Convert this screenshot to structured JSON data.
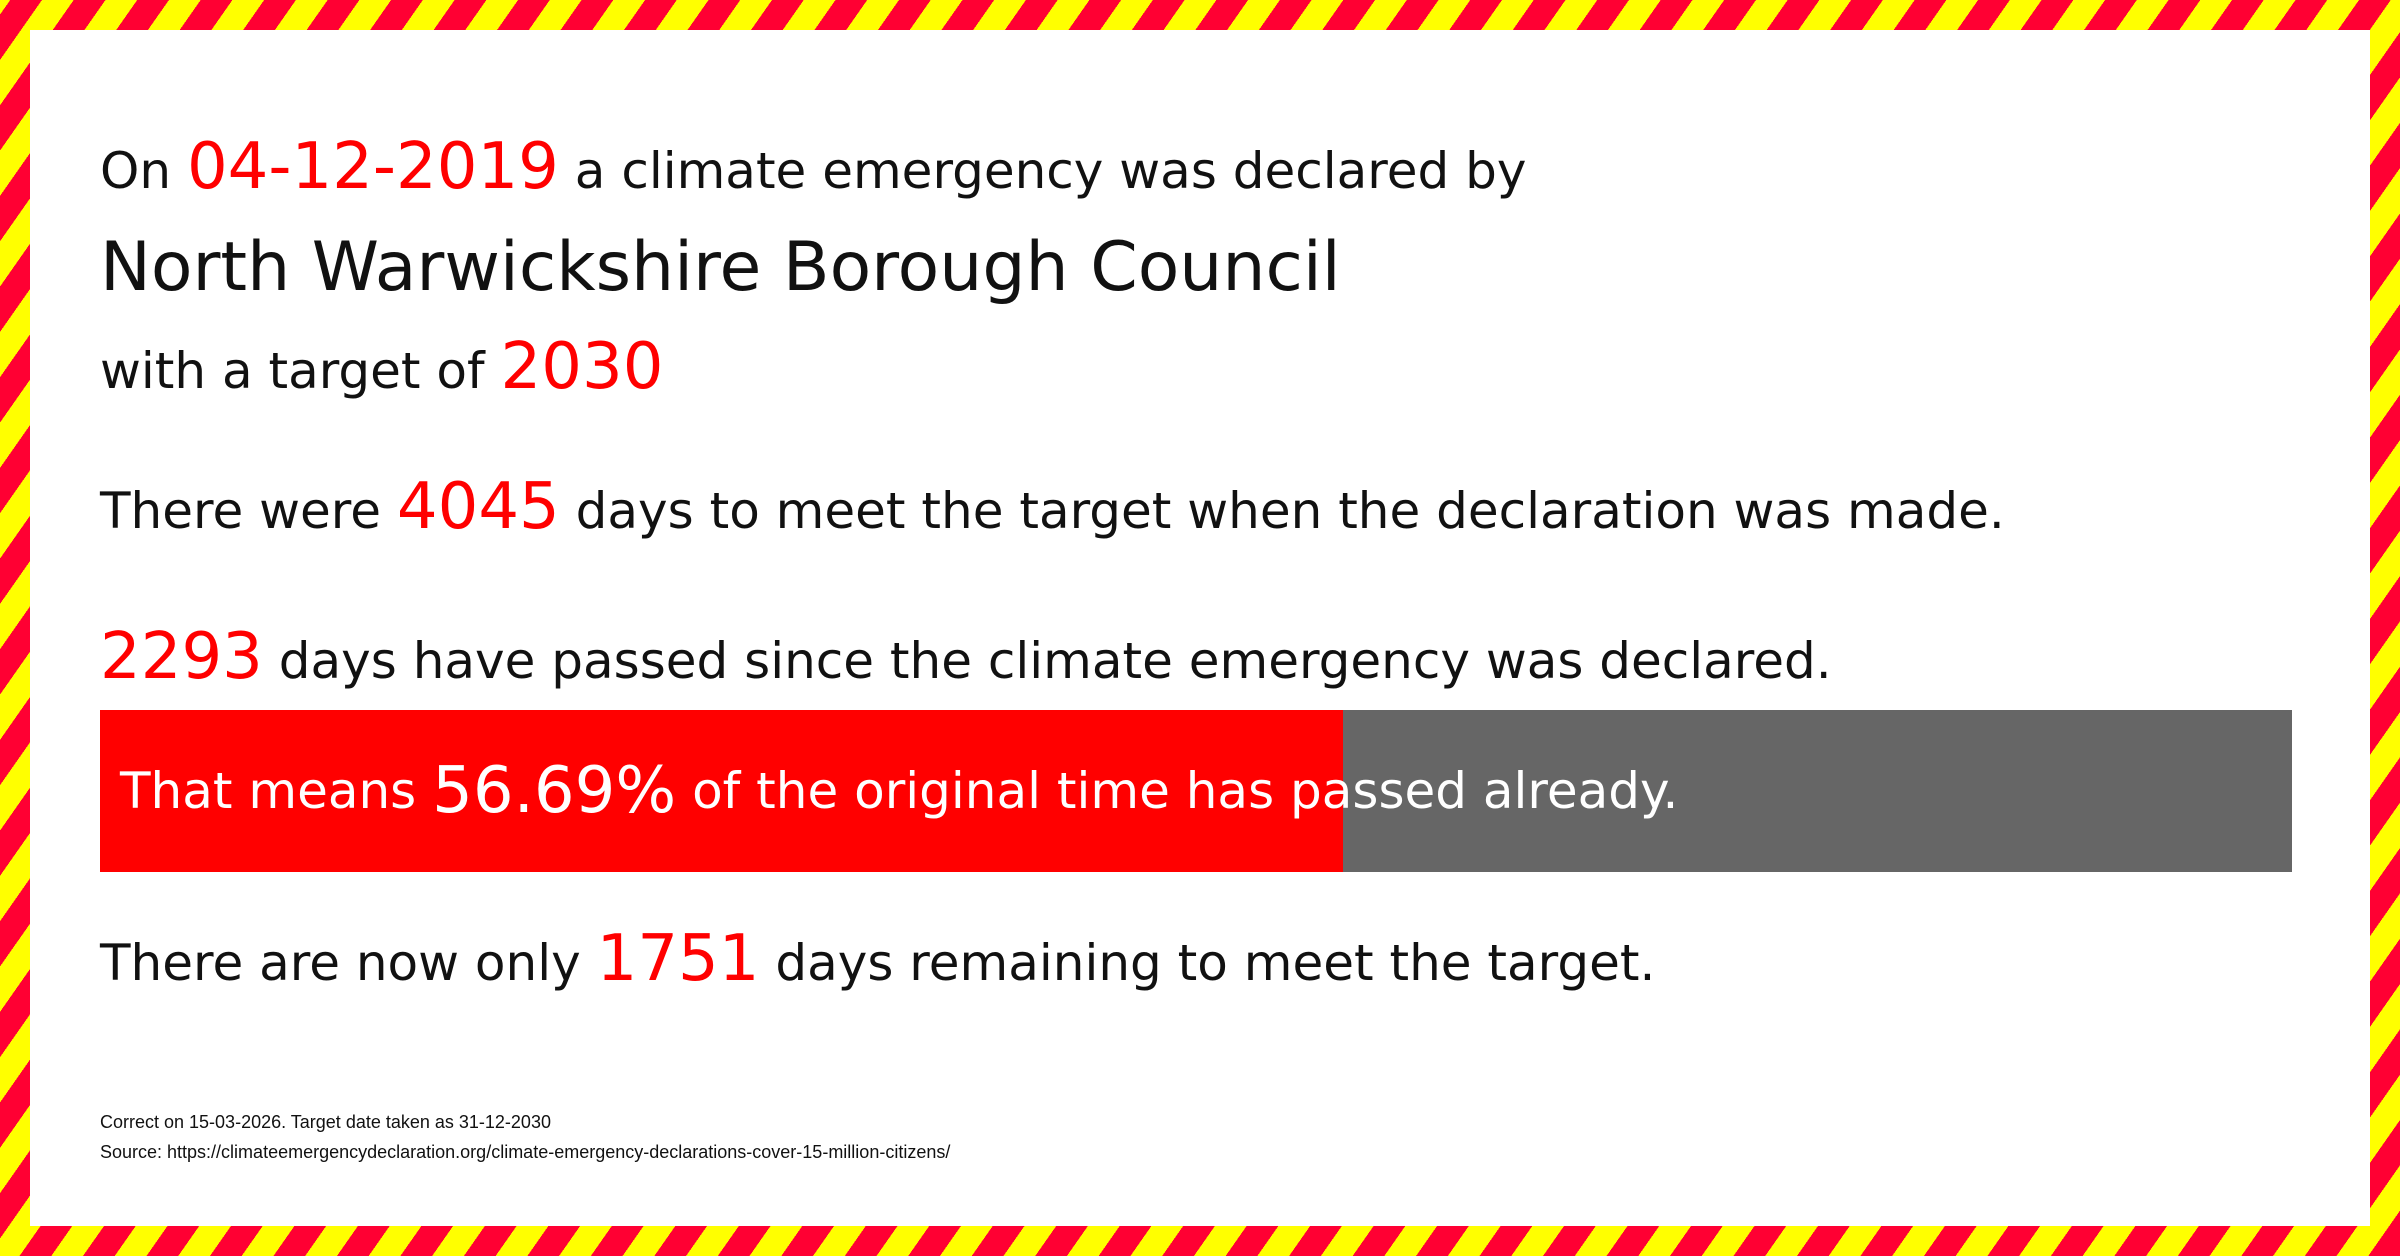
{
  "declaration": {
    "prefix": "On",
    "date": "04-12-2019",
    "suffix": "a climate emergency was declared by"
  },
  "council": "North Warwickshire Borough Council",
  "target": {
    "prefix": "with a target of",
    "year": "2030"
  },
  "days_total": {
    "prefix": "There were",
    "value": "4045",
    "suffix": "days to meet the target when the declaration was made."
  },
  "days_passed": {
    "value": "2293",
    "suffix": "days have passed since the climate emergency was declared."
  },
  "progress": {
    "prefix": "That means",
    "value": "56.69%",
    "suffix": "of the original time has passed already.",
    "percent": 56.69,
    "fill_color": "#ff0000",
    "track_color": "#666666"
  },
  "days_remaining": {
    "prefix": "There are now only",
    "value": "1751",
    "suffix": "days remaining to meet the target."
  },
  "footer": {
    "correct": "Correct on 15-03-2026. Target date taken as 31-12-2030",
    "source": "Source: https://climateemergencydeclaration.org/climate-emergency-declarations-cover-15-million-citizens/"
  },
  "colors": {
    "accent": "#ff0000",
    "stripe_red": "#ff0033",
    "stripe_yellow": "#ffff00"
  }
}
